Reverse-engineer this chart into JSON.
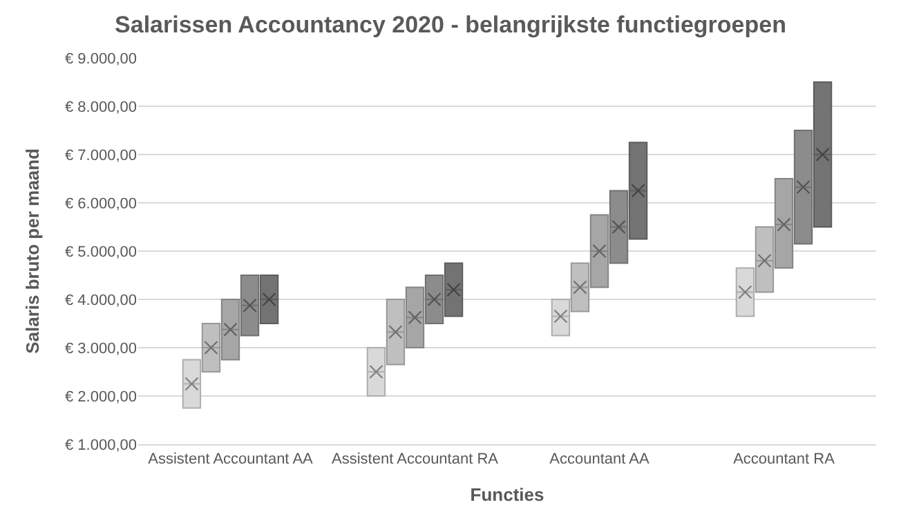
{
  "chart_data": {
    "type": "box",
    "title": "Salarissen Accountancy 2020 - belangrijkste functiegroepen",
    "xlabel": "Functies",
    "ylabel": "Salaris bruto per maand",
    "categories": [
      "Assistent Accountant AA",
      "Assistent Accountant RA",
      "Accountant AA",
      "Accountant RA"
    ],
    "series": [
      {
        "color": "#d9d9d9",
        "boxes": [
          {
            "low": 1750,
            "q1": 1750,
            "median": 2250,
            "q3": 2750,
            "high": 2750,
            "mean": 2250
          },
          {
            "low": 2000,
            "q1": 2000,
            "median": 2500,
            "q3": 3000,
            "high": 3000,
            "mean": 2500
          },
          {
            "low": 3250,
            "q1": 3250,
            "median": 3650,
            "q3": 4000,
            "high": 4000,
            "mean": 3650
          },
          {
            "low": 3650,
            "q1": 3650,
            "median": 4150,
            "q3": 4650,
            "high": 4650,
            "mean": 4150
          }
        ]
      },
      {
        "color": "#bfbfbf",
        "boxes": [
          {
            "low": 2500,
            "q1": 2500,
            "median": 3000,
            "q3": 3500,
            "high": 3500,
            "mean": 3000
          },
          {
            "low": 2650,
            "q1": 2650,
            "median": 3325,
            "q3": 4000,
            "high": 4000,
            "mean": 3325
          },
          {
            "low": 3750,
            "q1": 3750,
            "median": 4250,
            "q3": 4750,
            "high": 4750,
            "mean": 4250
          },
          {
            "low": 4150,
            "q1": 4150,
            "median": 4800,
            "q3": 5500,
            "high": 5500,
            "mean": 4800
          }
        ]
      },
      {
        "color": "#a6a6a6",
        "boxes": [
          {
            "low": 2750,
            "q1": 2750,
            "median": 3375,
            "q3": 4000,
            "high": 4000,
            "mean": 3375
          },
          {
            "low": 3000,
            "q1": 3000,
            "median": 3625,
            "q3": 4250,
            "high": 4250,
            "mean": 3625
          },
          {
            "low": 4250,
            "q1": 4250,
            "median": 5000,
            "q3": 5750,
            "high": 5750,
            "mean": 5000
          },
          {
            "low": 4650,
            "q1": 4650,
            "median": 5550,
            "q3": 6500,
            "high": 6500,
            "mean": 5550
          }
        ]
      },
      {
        "color": "#8c8c8c",
        "boxes": [
          {
            "low": 3250,
            "q1": 3250,
            "median": 3875,
            "q3": 4500,
            "high": 4500,
            "mean": 3875
          },
          {
            "low": 3500,
            "q1": 3500,
            "median": 4000,
            "q3": 4500,
            "high": 4500,
            "mean": 4000
          },
          {
            "low": 4750,
            "q1": 4750,
            "median": 5500,
            "q3": 6250,
            "high": 6250,
            "mean": 5500
          },
          {
            "low": 5150,
            "q1": 5150,
            "median": 6325,
            "q3": 7500,
            "high": 7500,
            "mean": 6325
          }
        ]
      },
      {
        "color": "#737373",
        "boxes": [
          {
            "low": 3500,
            "q1": 3500,
            "median": 4000,
            "q3": 4500,
            "high": 4500,
            "mean": 4000
          },
          {
            "low": 3650,
            "q1": 3650,
            "median": 4200,
            "q3": 4750,
            "high": 4750,
            "mean": 4200
          },
          {
            "low": 5250,
            "q1": 5250,
            "median": 6250,
            "q3": 7250,
            "high": 7250,
            "mean": 6250
          },
          {
            "low": 5500,
            "q1": 5500,
            "median": 7000,
            "q3": 8500,
            "high": 8500,
            "mean": 7000
          }
        ]
      }
    ],
    "ylim": [
      1000,
      9000
    ],
    "yticks": [
      {
        "value": 1000,
        "label": "€ 1.000,00"
      },
      {
        "value": 2000,
        "label": "€ 2.000,00"
      },
      {
        "value": 3000,
        "label": "€ 3.000,00"
      },
      {
        "value": 4000,
        "label": "€ 4.000,00"
      },
      {
        "value": 5000,
        "label": "€ 5.000,00"
      },
      {
        "value": 6000,
        "label": "€ 6.000,00"
      },
      {
        "value": 7000,
        "label": "€ 7.000,00"
      },
      {
        "value": 8000,
        "label": "€ 8.000,00"
      },
      {
        "value": 9000,
        "label": "€ 9.000,00"
      }
    ],
    "grid": "y",
    "marker": "cross"
  }
}
